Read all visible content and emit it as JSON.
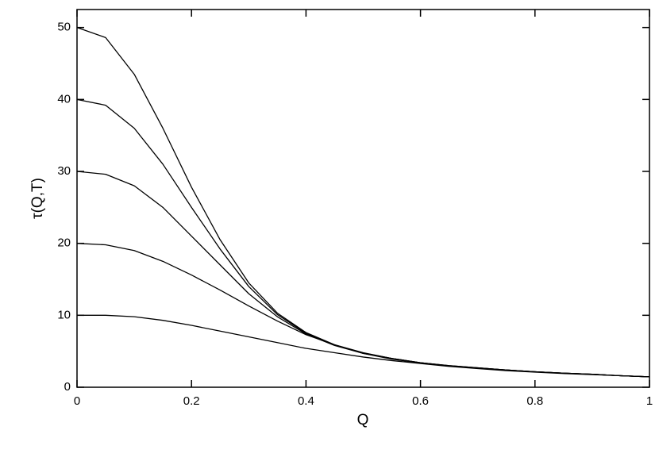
{
  "chart_data": {
    "type": "line",
    "x_label": "Q",
    "y_label": "τ(Q,T)",
    "x": [
      0,
      0.05,
      0.1,
      0.15,
      0.2,
      0.25,
      0.3,
      0.35,
      0.4,
      0.45,
      0.5,
      0.55,
      0.6,
      0.65,
      0.7,
      0.75,
      0.8,
      0.85,
      0.9,
      0.95,
      1
    ],
    "series": [
      {
        "color": "#000000",
        "values": [
          50,
          48.6,
          43.5,
          36,
          27.8,
          20.5,
          14.5,
          10.3,
          7.6,
          5.9,
          4.8,
          4.0,
          3.4,
          3.0,
          2.7,
          2.4,
          2.15,
          1.95,
          1.8,
          1.6,
          1.45
        ]
      },
      {
        "color": "#000000",
        "values": [
          40,
          39.2,
          36,
          31,
          25,
          19.2,
          14,
          10.1,
          7.5,
          5.85,
          4.75,
          4.0,
          3.4,
          3.0,
          2.7,
          2.4,
          2.15,
          1.95,
          1.8,
          1.6,
          1.45
        ]
      },
      {
        "color": "#000000",
        "values": [
          30,
          29.6,
          28,
          25,
          21,
          17,
          13,
          9.8,
          7.4,
          5.8,
          4.7,
          4.0,
          3.4,
          2.98,
          2.68,
          2.4,
          2.15,
          1.95,
          1.8,
          1.6,
          1.45
        ]
      },
      {
        "color": "#000000",
        "values": [
          20,
          19.8,
          19,
          17.5,
          15.6,
          13.5,
          11.3,
          9.2,
          7.3,
          5.9,
          4.7,
          3.9,
          3.35,
          2.95,
          2.65,
          2.4,
          2.15,
          1.95,
          1.8,
          1.6,
          1.45
        ]
      },
      {
        "color": "#000000",
        "values": [
          10,
          10,
          9.8,
          9.3,
          8.6,
          7.8,
          7.0,
          6.2,
          5.4,
          4.8,
          4.2,
          3.7,
          3.3,
          2.9,
          2.6,
          2.3,
          2.1,
          1.9,
          1.75,
          1.6,
          1.45
        ]
      }
    ],
    "xlim": [
      0,
      1
    ],
    "xticks": [
      0,
      0.2,
      0.4,
      0.6,
      0.8,
      1
    ],
    "ylim": [
      0,
      52.5
    ],
    "yticks": [
      0,
      10,
      20,
      30,
      40,
      50
    ],
    "grid": false
  }
}
